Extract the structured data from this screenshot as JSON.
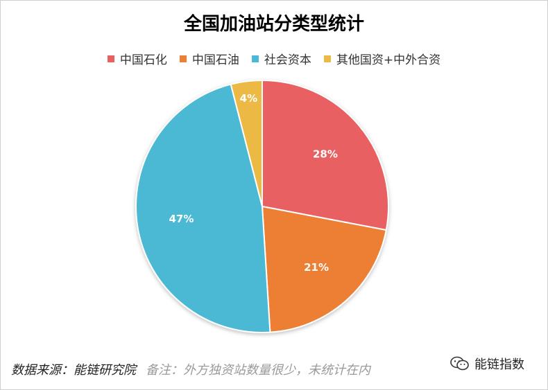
{
  "chart_data": {
    "type": "pie",
    "title": "全国加油站分类型统计",
    "legend_position": "top",
    "slices": [
      {
        "name": "中国石化",
        "value": 28,
        "label": "28%",
        "color": "#E96063"
      },
      {
        "name": "中国石油",
        "value": 21,
        "label": "21%",
        "color": "#ED7F34"
      },
      {
        "name": "社会资本",
        "value": 47,
        "label": "47%",
        "color": "#4BB8D4"
      },
      {
        "name": "其他国资+中外合资",
        "value": 4,
        "label": "4%",
        "color": "#EDB945"
      }
    ]
  },
  "footer": {
    "source": "数据来源：能链研究院",
    "note": "备注：外方独资站数量很少，未统计在内"
  },
  "brand": {
    "name": "能链指数",
    "icon": "wechat-icon"
  }
}
